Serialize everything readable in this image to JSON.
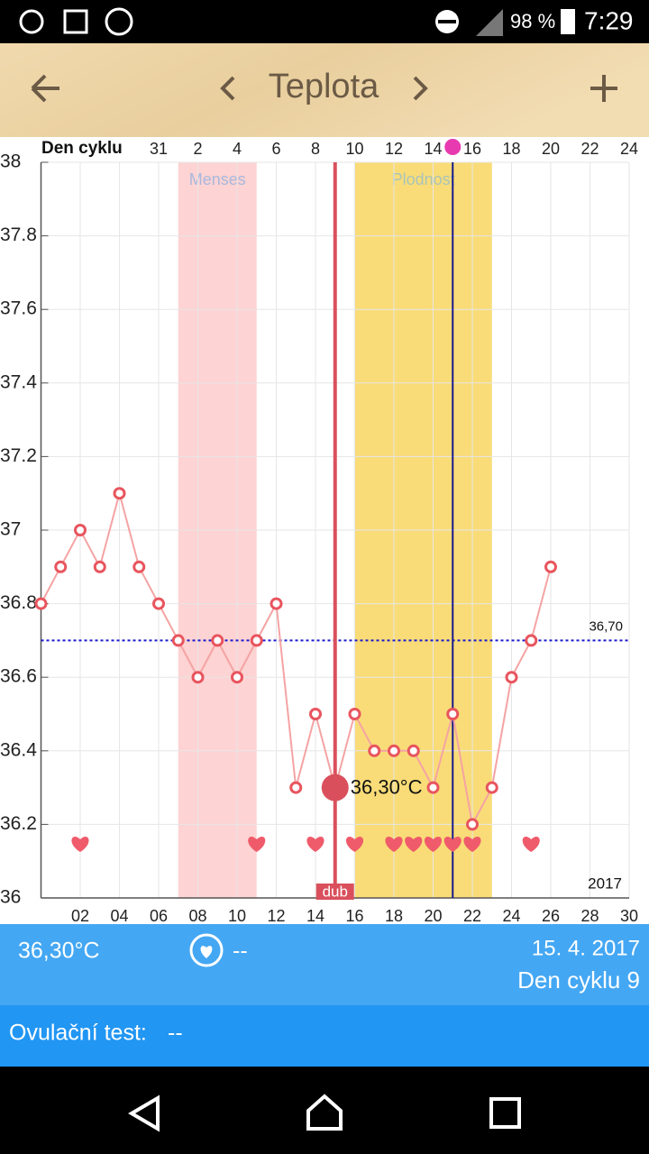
{
  "status_bar": {
    "battery": "98 %",
    "time": "7:29"
  },
  "app_bar": {
    "title": "Teplota"
  },
  "chart_data": {
    "type": "line",
    "x_axis_label": "Den cyklu",
    "x": [
      0,
      1,
      2,
      3,
      4,
      5,
      6,
      7,
      8,
      9,
      10,
      11,
      12,
      13,
      14,
      15,
      16,
      17,
      18,
      19,
      20,
      21,
      22,
      23,
      24,
      25,
      26
    ],
    "values": [
      36.8,
      36.9,
      37.0,
      36.9,
      37.1,
      36.9,
      36.8,
      36.7,
      36.6,
      36.7,
      36.6,
      36.7,
      36.8,
      36.3,
      36.5,
      36.3,
      36.5,
      36.4,
      36.4,
      36.4,
      36.3,
      36.5,
      36.2,
      36.3,
      36.6,
      36.7,
      36.9
    ],
    "color": "#f5a3a3",
    "marker_color": "#e8555e",
    "xlim": [
      0,
      30
    ],
    "ylim": [
      36,
      38
    ],
    "yticks": [
      36,
      36.2,
      36.4,
      36.6,
      36.8,
      37,
      37.2,
      37.4,
      37.6,
      37.8,
      38
    ],
    "xticks": [
      {
        "value": 2,
        "label": "02"
      },
      {
        "value": 4,
        "label": "04"
      },
      {
        "value": 6,
        "label": "06"
      },
      {
        "value": 8,
        "label": "08"
      },
      {
        "value": 10,
        "label": "10"
      },
      {
        "value": 12,
        "label": "12"
      },
      {
        "value": 14,
        "label": "14"
      },
      {
        "value": 16,
        "label": "16"
      },
      {
        "value": 18,
        "label": "18"
      },
      {
        "value": 20,
        "label": "20"
      },
      {
        "value": 22,
        "label": "22"
      },
      {
        "value": 24,
        "label": "24"
      },
      {
        "value": 26,
        "label": "26"
      },
      {
        "value": 28,
        "label": "28"
      },
      {
        "value": 30,
        "label": "30"
      }
    ],
    "cycle_ticks": [
      {
        "value": 6,
        "label": "31"
      },
      {
        "value": 8,
        "label": "2"
      },
      {
        "value": 10,
        "label": "4"
      },
      {
        "value": 12,
        "label": "6"
      },
      {
        "value": 14,
        "label": "8"
      },
      {
        "value": 16,
        "label": "10"
      },
      {
        "value": 18,
        "label": "12"
      },
      {
        "value": 20,
        "label": "14"
      },
      {
        "value": 22,
        "label": "16"
      },
      {
        "value": 24,
        "label": "18"
      },
      {
        "value": 26,
        "label": "20"
      },
      {
        "value": 28,
        "label": "22"
      },
      {
        "value": 30,
        "label": "24"
      }
    ],
    "bands": [
      {
        "label": "Menses",
        "start": 7,
        "end": 11,
        "color": "#fdd3d3",
        "text_color": "#a9b8dc"
      },
      {
        "label": "Plodnost",
        "start": 16,
        "end": 23,
        "color": "#f9dc78",
        "text_color": "#a9c4b8"
      }
    ],
    "reference_line": {
      "value": 36.7,
      "label": "36,70",
      "color": "#1a1acc"
    },
    "selected": {
      "x": 15,
      "label": "36,30°C",
      "date_tag": "dub",
      "color": "#d9505c"
    },
    "ovulation_x": 21,
    "heart_days": [
      2,
      11,
      14,
      16,
      18,
      19,
      20,
      21,
      22,
      25
    ],
    "year_label": "2017",
    "grid": true
  },
  "summary": {
    "temperature": "36,30°C",
    "heart": "--",
    "date": "15. 4. 2017",
    "cycle_day": "Den cyklu 9",
    "ovulation_test_label": "Ovulační test:",
    "ovulation_test_value": "--"
  }
}
